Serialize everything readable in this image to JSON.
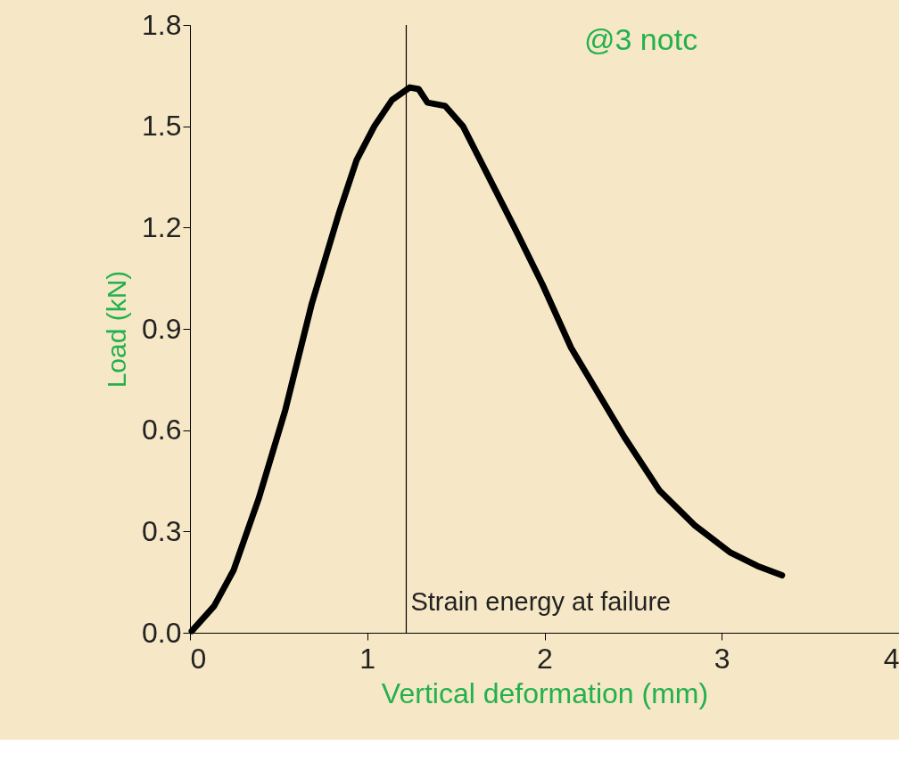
{
  "chart_data": {
    "type": "line",
    "title": "@3 notc",
    "xlabel": "Vertical deformation (mm)",
    "ylabel": "Load (kN)",
    "x": [
      0.01,
      0.136,
      0.246,
      0.387,
      0.538,
      0.688,
      0.839,
      0.94,
      1.04,
      1.14,
      1.24,
      1.29,
      1.34,
      1.44,
      1.54,
      1.69,
      1.84,
      1.99,
      2.15,
      2.3,
      2.45,
      2.65,
      2.85,
      3.05,
      3.2,
      3.34
    ],
    "series": [
      {
        "color": "#000000",
        "values": [
          0.005,
          0.079,
          0.185,
          0.396,
          0.66,
          0.976,
          1.24,
          1.4,
          1.5,
          1.578,
          1.615,
          1.61,
          1.57,
          1.56,
          1.5,
          1.345,
          1.19,
          1.03,
          0.844,
          0.712,
          0.58,
          0.42,
          0.317,
          0.237,
          0.198,
          0.17
        ]
      }
    ],
    "xlim": [
      0,
      4
    ],
    "xticks": [
      0,
      1,
      2,
      3,
      4
    ],
    "ylim": [
      0,
      1.8
    ],
    "yticks": [
      {
        "value": 0,
        "label": "0.0"
      },
      {
        "value": 0.3,
        "label": "0.3"
      },
      {
        "value": 0.6,
        "label": "0.6"
      },
      {
        "value": 0.9,
        "label": "0.9"
      },
      {
        "value": 1.2,
        "label": "1.2"
      },
      {
        "value": 1.5,
        "label": "1.5"
      },
      {
        "value": 1.8,
        "label": "1.8"
      }
    ],
    "ref_lines": [
      {
        "axis": "x",
        "value": 1.22,
        "color": "#000000"
      }
    ],
    "annotations": [
      {
        "text": "Strain energy at failure",
        "x": 1.23,
        "y": 0.05
      }
    ],
    "grid": false,
    "marker": "none",
    "line_style": "solid"
  }
}
